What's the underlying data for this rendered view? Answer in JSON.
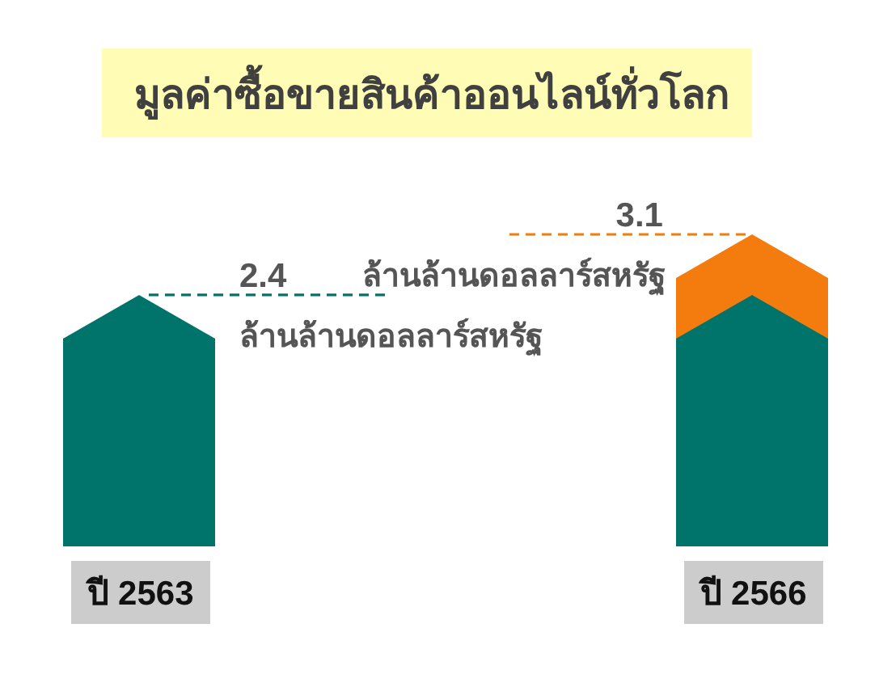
{
  "chart_data": {
    "type": "bar",
    "title": "มูลค่าซื้อขายสินค้าออนไลน์ทั่วโลก",
    "categories": [
      "ปี 2563",
      "ปี 2566"
    ],
    "stacked": true,
    "series": [
      {
        "color": "#00736a",
        "values": [
          2.4,
          2.4
        ],
        "value_labels": [
          "2.4",
          null
        ]
      },
      {
        "color": "#f47c0e",
        "values": [
          null,
          0.7
        ]
      }
    ],
    "totals": [
      null,
      "3.1"
    ],
    "annotations": [
      "ล้านล้านดอลลาร์สหรัฐ",
      "ล้านล้านดอลลาร์สหรัฐ"
    ]
  }
}
